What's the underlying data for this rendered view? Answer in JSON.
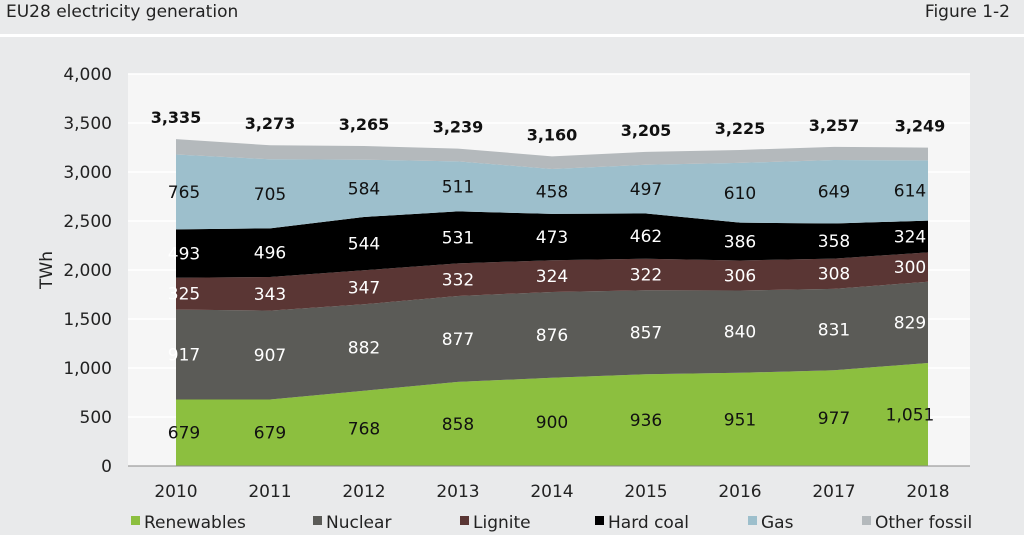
{
  "header": {
    "title": "EU28 electricity generation",
    "figure": "Figure 1-2"
  },
  "chart_data": {
    "type": "area",
    "stacked": true,
    "title": "EU28 electricity generation",
    "ylabel": "TWh",
    "xlabel": "",
    "ylim": [
      0,
      4000
    ],
    "yticks": [
      0,
      500,
      1000,
      1500,
      2000,
      2500,
      3000,
      3500,
      4000
    ],
    "ytick_labels": [
      "0",
      "500",
      "1,000",
      "1,500",
      "2,000",
      "2,500",
      "3,000",
      "3,500",
      "4,000"
    ],
    "grid": true,
    "legend": "bottom",
    "categories": [
      "2010",
      "2011",
      "2012",
      "2013",
      "2014",
      "2015",
      "2016",
      "2017",
      "2018"
    ],
    "series": [
      {
        "name": "Renewables",
        "color": "#8cbf3f",
        "label_color": "#111111",
        "values": [
          679,
          679,
          768,
          858,
          900,
          936,
          951,
          977,
          1051
        ],
        "labels": [
          "679",
          "679",
          "768",
          "858",
          "900",
          "936",
          "951",
          "977",
          "1,051"
        ]
      },
      {
        "name": "Nuclear",
        "color": "#5b5b57",
        "label_color": "#ffffff",
        "values": [
          917,
          907,
          882,
          877,
          876,
          857,
          840,
          831,
          829
        ],
        "labels": [
          "917",
          "907",
          "882",
          "877",
          "876",
          "857",
          "840",
          "831",
          "829"
        ]
      },
      {
        "name": "Lignite",
        "color": "#5a3634",
        "label_color": "#ffffff",
        "values": [
          325,
          343,
          347,
          332,
          324,
          322,
          306,
          308,
          300
        ],
        "labels": [
          "325",
          "343",
          "347",
          "332",
          "324",
          "322",
          "306",
          "308",
          "300"
        ]
      },
      {
        "name": "Hard coal",
        "color": "#000000",
        "label_color": "#ffffff",
        "values": [
          493,
          496,
          544,
          531,
          473,
          462,
          386,
          358,
          324
        ],
        "labels": [
          "493",
          "496",
          "544",
          "531",
          "473",
          "462",
          "386",
          "358",
          "324"
        ]
      },
      {
        "name": "Gas",
        "color": "#9dbfcc",
        "label_color": "#111111",
        "values": [
          765,
          705,
          584,
          511,
          458,
          497,
          610,
          649,
          614
        ],
        "labels": [
          "765",
          "705",
          "584",
          "511",
          "458",
          "497",
          "610",
          "649",
          "614"
        ]
      },
      {
        "name": "Other fossil",
        "color": "#b4b9bc",
        "label_color": "#111111",
        "values": [
          156,
          143,
          140,
          130,
          129,
          131,
          132,
          134,
          131
        ],
        "labels": []
      }
    ],
    "totals": [
      3335,
      3273,
      3265,
      3239,
      3160,
      3205,
      3225,
      3257,
      3249
    ],
    "total_labels": [
      "3,335",
      "3,273",
      "3,265",
      "3,239",
      "3,160",
      "3,205",
      "3,225",
      "3,257",
      "3,249"
    ]
  }
}
